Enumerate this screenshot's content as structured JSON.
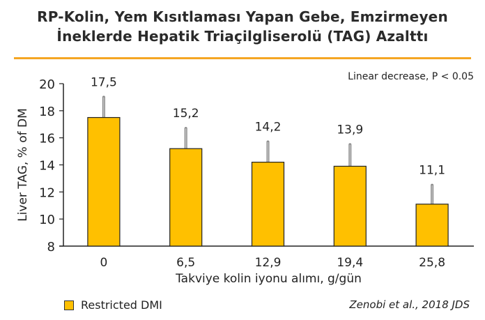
{
  "title_line1": "RP-Kolin, Yem Kısıtlaması Yapan Gebe, Emzirmeyen",
  "title_line2": "İneklerde Hepatik Triaçilgliserolü (TAG) Azalttı",
  "annotation": "Linear decrease, P < 0.05",
  "citation": "Zenobi et al., 2018 JDS",
  "colors": {
    "bar": "#FFC000",
    "rule": "#F5A623",
    "error_bar": "#888888"
  },
  "chart_data": {
    "type": "bar",
    "categories": [
      "0",
      "6,5",
      "12,9",
      "19,4",
      "25,8"
    ],
    "series": [
      {
        "name": "Restricted DMI",
        "values": [
          17.5,
          15.2,
          14.2,
          13.9,
          11.1
        ],
        "error_upper": [
          19.0,
          16.7,
          15.7,
          15.5,
          12.5
        ]
      }
    ],
    "data_labels": [
      "17,5",
      "15,2",
      "14,2",
      "13,9",
      "11,1"
    ],
    "xlabel": "Takviye kolin iyonu alımı, g/gün",
    "ylabel": "Liver TAG, % of DM",
    "ylim": [
      8,
      20
    ],
    "yticks": [
      8,
      10,
      12,
      14,
      16,
      18,
      20
    ],
    "grid": false,
    "legend": "bottom-left"
  }
}
